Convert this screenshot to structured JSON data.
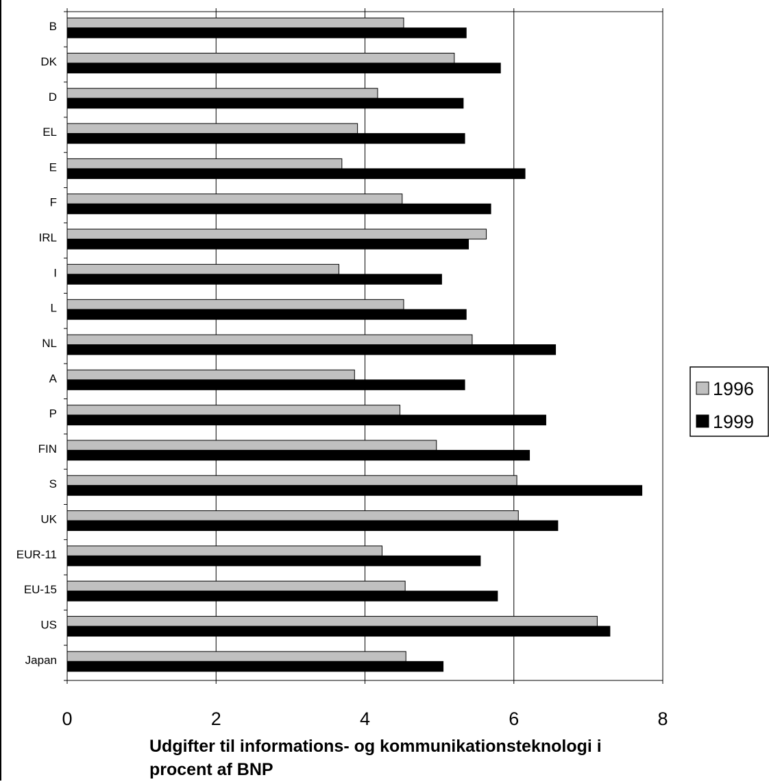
{
  "chart_data": {
    "type": "bar",
    "orientation": "horizontal",
    "categories": [
      "B",
      "DK",
      "D",
      "EL",
      "E",
      "F",
      "IRL",
      "I",
      "L",
      "NL",
      "A",
      "P",
      "FIN",
      "S",
      "UK",
      "EUR-11",
      "EU-15",
      "US",
      "Japan"
    ],
    "series": [
      {
        "name": "1996",
        "color": "#c0c0c0",
        "values": [
          4.52,
          5.2,
          4.17,
          3.9,
          3.69,
          4.5,
          5.63,
          3.65,
          4.52,
          5.44,
          3.86,
          4.47,
          4.96,
          6.04,
          6.06,
          4.23,
          4.54,
          7.12,
          4.55
        ]
      },
      {
        "name": "1999",
        "color": "#000000",
        "values": [
          5.36,
          5.82,
          5.32,
          5.34,
          6.15,
          5.69,
          5.39,
          5.03,
          5.36,
          6.56,
          5.34,
          6.43,
          6.21,
          7.72,
          6.59,
          5.55,
          5.78,
          7.29,
          5.05
        ]
      }
    ],
    "xlim": [
      0,
      8
    ],
    "xticks": [
      "0",
      "2",
      "4",
      "6",
      "8"
    ],
    "xlabel": "Udgifter til informations- og kommunikationsteknologi i procent af BNP",
    "xlabel_lines": [
      "Udgifter til informations- og kommunikationsteknologi i",
      "procent af BNP"
    ],
    "grid": "vertical",
    "legend": {
      "position": "right",
      "entries": [
        "1996",
        "1999"
      ]
    }
  }
}
